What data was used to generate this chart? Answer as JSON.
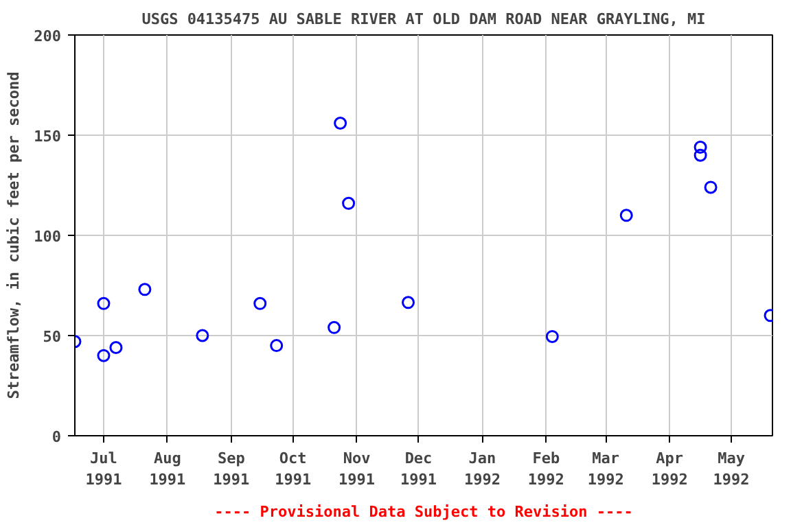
{
  "chart_data": {
    "type": "scatter",
    "title": "USGS 04135475 AU SABLE RIVER AT OLD DAM ROAD NEAR GRAYLING, MI",
    "ylabel": "Streamflow, in cubic feet per second",
    "annotations": [
      "---- Provisional Data Subject to Revision ----"
    ],
    "x": [
      "1991-06-17",
      "1991-07-01",
      "1991-07-01",
      "1991-07-07",
      "1991-07-21",
      "1991-08-18",
      "1991-09-15",
      "1991-09-23",
      "1991-10-21",
      "1991-10-24",
      "1991-10-28",
      "1991-11-26",
      "1992-02-04",
      "1992-03-11",
      "1992-04-16",
      "1992-04-16",
      "1992-04-21",
      "1992-05-20"
    ],
    "series": [
      {
        "color": "#0000ff",
        "values": [
          47,
          40,
          66,
          44,
          73,
          50,
          66,
          45,
          54,
          156,
          116,
          66.5,
          49.5,
          110,
          144,
          140,
          124,
          60
        ]
      }
    ],
    "marker": "circle",
    "xlim": [
      "1991-06-17",
      "1992-05-21"
    ],
    "xticks": [
      {
        "value": "1991-07-01",
        "label": "Jul\n1991"
      },
      {
        "value": "1991-08-01",
        "label": "Aug\n1991"
      },
      {
        "value": "1991-09-01",
        "label": "Sep\n1991"
      },
      {
        "value": "1991-10-01",
        "label": "Oct\n1991"
      },
      {
        "value": "1991-11-01",
        "label": "Nov\n1991"
      },
      {
        "value": "1991-12-01",
        "label": "Dec\n1991"
      },
      {
        "value": "1992-01-01",
        "label": "Jan\n1992"
      },
      {
        "value": "1992-02-01",
        "label": "Feb\n1992"
      },
      {
        "value": "1992-03-01",
        "label": "Mar\n1992"
      },
      {
        "value": "1992-04-01",
        "label": "Apr\n1992"
      },
      {
        "value": "1992-05-01",
        "label": "May\n1992"
      }
    ],
    "ylim": [
      0,
      200
    ],
    "yticks": [
      0,
      50,
      100,
      150,
      200
    ],
    "grid": true
  }
}
